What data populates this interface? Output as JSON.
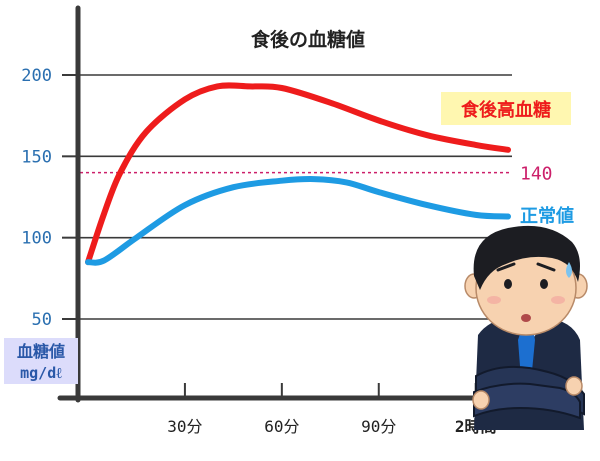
{
  "chart_data": {
    "type": "line",
    "title": "食後の血糖値",
    "ylabel": "血糖値",
    "yunit": "mg/dℓ",
    "ylim": [
      40,
      235
    ],
    "xlim": [
      0,
      130
    ],
    "y_ticks": [
      {
        "value": 200,
        "label": "200"
      },
      {
        "value": 150,
        "label": "150"
      },
      {
        "value": 100,
        "label": "100"
      },
      {
        "value": 50,
        "label": "50"
      }
    ],
    "x_ticks": [
      {
        "value": 30,
        "label": "30分"
      },
      {
        "value": 60,
        "label": "60分"
      },
      {
        "value": 90,
        "label": "90分"
      },
      {
        "value": 120,
        "label": "2時間"
      }
    ],
    "grid": true,
    "series": [
      {
        "name": "食後高血糖",
        "color": "#ee1c1c",
        "label_bg": "#fff7b0",
        "points": [
          [
            0,
            85
          ],
          [
            5,
            115
          ],
          [
            10,
            140
          ],
          [
            18,
            165
          ],
          [
            30,
            185
          ],
          [
            40,
            193
          ],
          [
            50,
            193
          ],
          [
            60,
            192
          ],
          [
            75,
            183
          ],
          [
            90,
            172
          ],
          [
            105,
            163
          ],
          [
            120,
            157
          ],
          [
            130,
            154
          ]
        ]
      },
      {
        "name": "正常値",
        "color": "#1e9be3",
        "label_bg": "",
        "points": [
          [
            0,
            85
          ],
          [
            5,
            86
          ],
          [
            15,
            100
          ],
          [
            30,
            120
          ],
          [
            45,
            131
          ],
          [
            60,
            135
          ],
          [
            70,
            136
          ],
          [
            80,
            134
          ],
          [
            90,
            128
          ],
          [
            105,
            120
          ],
          [
            120,
            114
          ],
          [
            130,
            113
          ]
        ]
      }
    ],
    "reference_line": {
      "value": 140,
      "label": "140",
      "color": "#cc1f6a"
    }
  },
  "colors": {
    "axis": "#3a3a3a",
    "grid": "#3a3a3a",
    "tick_y": "#2a6fb0",
    "unit_bg": "#dcdcfb",
    "unit_text": "#2a58a8",
    "x_highlight": "#ee1c1c"
  },
  "illustration": {
    "name": "worried-businessman-icon"
  }
}
